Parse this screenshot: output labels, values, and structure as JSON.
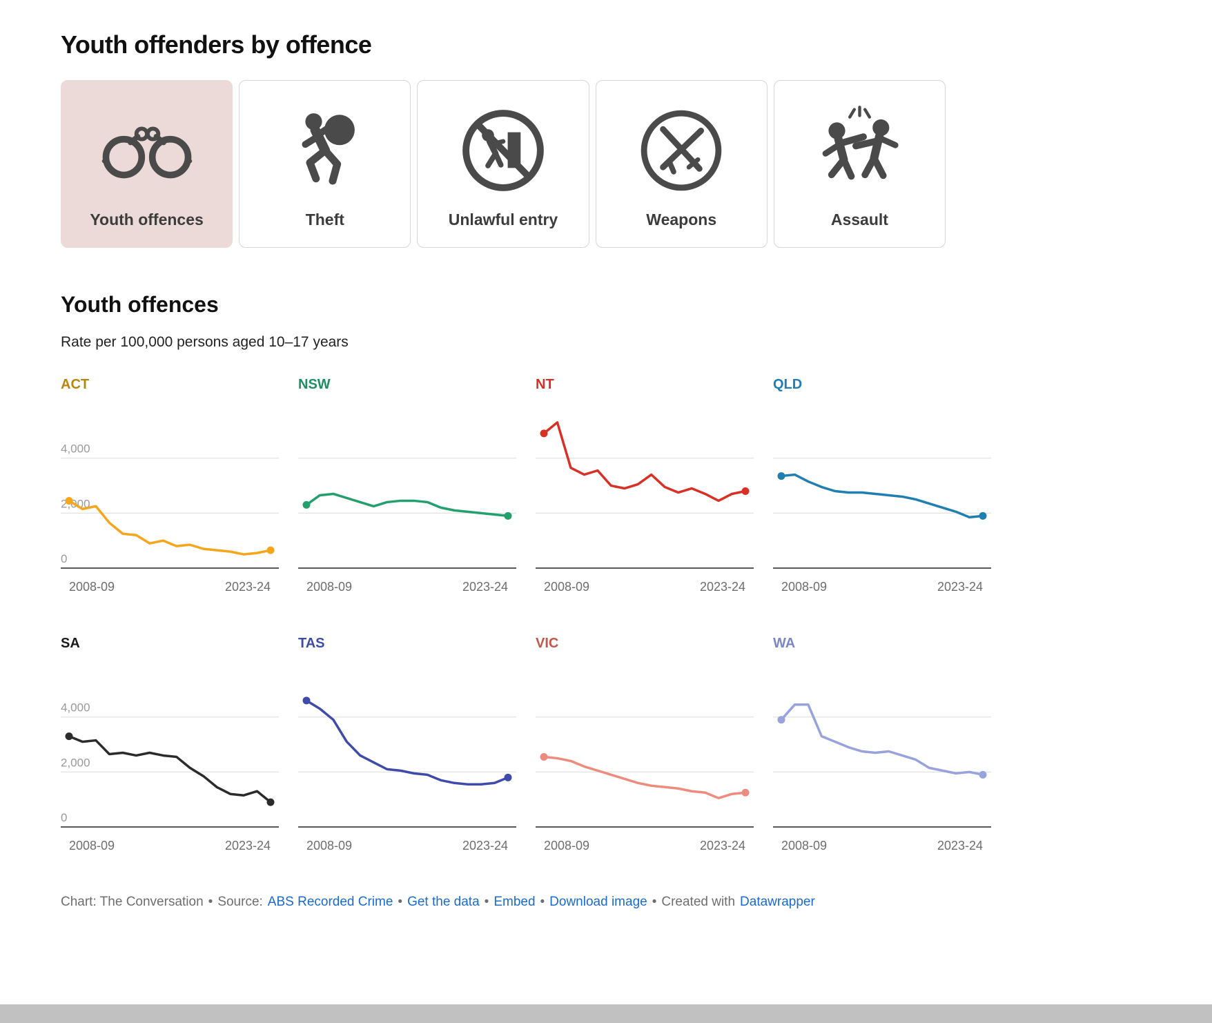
{
  "page": {
    "title": "Youth offenders by offence"
  },
  "tabs": [
    {
      "label": "Youth offences",
      "icon": "handcuffs-icon",
      "selected": true
    },
    {
      "label": "Theft",
      "icon": "running-thief-icon",
      "selected": false
    },
    {
      "label": "Unlawful entry",
      "icon": "no-entry-door-icon",
      "selected": false
    },
    {
      "label": "Weapons",
      "icon": "crossed-weapons-icon",
      "selected": false
    },
    {
      "label": "Assault",
      "icon": "fighting-figures-icon",
      "selected": false
    }
  ],
  "chart": {
    "heading": "Youth offences",
    "subtitle": "Rate per 100,000 persons aged 10–17 years"
  },
  "chart_data": {
    "type": "line",
    "x": [
      "2008-09",
      "2009-10",
      "2010-11",
      "2011-12",
      "2012-13",
      "2013-14",
      "2014-15",
      "2015-16",
      "2016-17",
      "2017-18",
      "2018-19",
      "2019-20",
      "2020-21",
      "2021-22",
      "2022-23",
      "2023-24"
    ],
    "x_tick_labels": [
      "2008-09",
      "2023-24"
    ],
    "ylim": [
      0,
      5600
    ],
    "yticks": [
      0,
      2000,
      4000
    ],
    "ytick_labels": [
      "0",
      "2,000",
      "4,000"
    ],
    "grid": true,
    "legend": false,
    "ylabel": "Rate per 100,000 persons aged 10–17 years",
    "series": [
      {
        "name": "ACT",
        "color": "#F7A51C",
        "label_color": "#B8860B",
        "values": [
          2450,
          2150,
          2250,
          1650,
          1250,
          1200,
          900,
          1000,
          800,
          850,
          700,
          650,
          600,
          500,
          550,
          650
        ]
      },
      {
        "name": "NSW",
        "color": "#23A06E",
        "label_color": "#1E8F62",
        "values": [
          2300,
          2650,
          2700,
          2550,
          2400,
          2250,
          2400,
          2450,
          2450,
          2400,
          2200,
          2100,
          2050,
          2000,
          1950,
          1900
        ]
      },
      {
        "name": "NT",
        "color": "#D93025",
        "label_color": "#D93025",
        "values": [
          4900,
          5300,
          3650,
          3400,
          3550,
          3000,
          2900,
          3050,
          3400,
          2950,
          2750,
          2900,
          2700,
          2450,
          2700,
          2800
        ]
      },
      {
        "name": "QLD",
        "color": "#1F7FB0",
        "label_color": "#1F7FB0",
        "values": [
          3350,
          3400,
          3150,
          2950,
          2800,
          2750,
          2750,
          2700,
          2650,
          2600,
          2500,
          2350,
          2200,
          2050,
          1850,
          1900
        ]
      },
      {
        "name": "SA",
        "color": "#2B2B2B",
        "label_color": "#1a1a1a",
        "values": [
          3300,
          3100,
          3150,
          2650,
          2700,
          2600,
          2700,
          2600,
          2550,
          2150,
          1850,
          1450,
          1200,
          1150,
          1300,
          900
        ]
      },
      {
        "name": "TAS",
        "color": "#3F4BA8",
        "label_color": "#3F4BA8",
        "values": [
          4600,
          4300,
          3900,
          3100,
          2600,
          2350,
          2100,
          2050,
          1950,
          1900,
          1700,
          1600,
          1550,
          1550,
          1600,
          1800
        ]
      },
      {
        "name": "VIC",
        "color": "#EE8B7E",
        "label_color": "#C2574B",
        "values": [
          2550,
          2500,
          2400,
          2200,
          2050,
          1900,
          1750,
          1600,
          1500,
          1450,
          1400,
          1300,
          1250,
          1050,
          1200,
          1250
        ]
      },
      {
        "name": "WA",
        "color": "#98A2DC",
        "label_color": "#7B86C8",
        "values": [
          3900,
          4450,
          4450,
          3300,
          3100,
          2900,
          2750,
          2700,
          2750,
          2600,
          2450,
          2150,
          2050,
          1950,
          2000,
          1900
        ]
      }
    ]
  },
  "footer_segments": [
    {
      "text": "Chart: The Conversation",
      "type": "text"
    },
    {
      "text": "•",
      "type": "sep"
    },
    {
      "text": "Source:",
      "type": "text"
    },
    {
      "text": "ABS Recorded Crime",
      "type": "link"
    },
    {
      "text": "•",
      "type": "sep"
    },
    {
      "text": "Get the data",
      "type": "link"
    },
    {
      "text": "•",
      "type": "sep"
    },
    {
      "text": "Embed",
      "type": "link"
    },
    {
      "text": "•",
      "type": "sep"
    },
    {
      "text": "Download image",
      "type": "link"
    },
    {
      "text": "•",
      "type": "sep"
    },
    {
      "text": "Created with",
      "type": "text"
    },
    {
      "text": "Datawrapper",
      "type": "link"
    }
  ],
  "colors": {
    "selected_tab_background": "#ecdad8",
    "icon": "#4a4a4a",
    "link": "#1a6bcc",
    "gridline": "#e2e2e2",
    "axis_label": "#6e6e6e"
  }
}
